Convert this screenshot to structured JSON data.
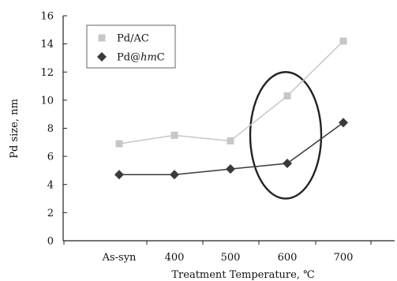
{
  "chart_data": {
    "type": "line",
    "categories": [
      "As-syn",
      "400",
      "500",
      "600",
      "700"
    ],
    "series": [
      {
        "name": "Pd/AC",
        "values": [
          6.9,
          7.5,
          7.1,
          10.3,
          14.2
        ],
        "color": "#c7c7c7",
        "marker": "square"
      },
      {
        "name": "Pd@hmC",
        "values": [
          4.7,
          4.7,
          5.1,
          5.5,
          8.4
        ],
        "color": "#3a3a3a",
        "marker": "diamond"
      }
    ],
    "xlabel": "Treatment Temperature, ℃",
    "ylabel": "Pd size, nm",
    "ylim": [
      0,
      16
    ],
    "yticks": [
      0,
      2,
      4,
      6,
      8,
      10,
      12,
      14,
      16
    ],
    "grid": false,
    "legend_position": "top-left",
    "annotation": {
      "type": "ellipse",
      "category_index": 3,
      "y_min": 3.0,
      "y_max": 12.0
    }
  }
}
